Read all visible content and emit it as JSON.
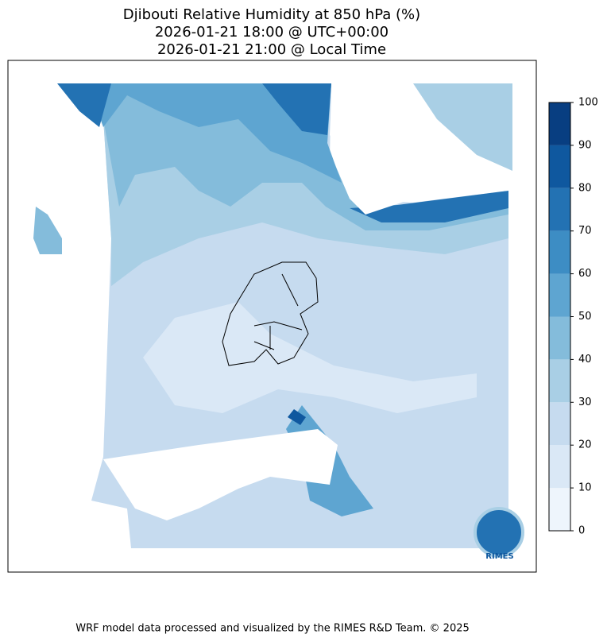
{
  "title": [
    "Djibouti Relative Humidity at 850 hPa (%)",
    "2026-01-21 18:00 @ UTC+00:00",
    "2026-01-21 21:00 @ Local Time"
  ],
  "colorbar": {
    "ticks": [
      0,
      10,
      20,
      30,
      40,
      50,
      60,
      70,
      80,
      90,
      100
    ],
    "colors": [
      "#eef5fc",
      "#dae8f6",
      "#c6dbef",
      "#a9cfe5",
      "#84bcdb",
      "#5ea5d1",
      "#3d8dc4",
      "#2372b3",
      "#0f589f",
      "#083e81"
    ]
  },
  "logo": "RIMES",
  "footer": "WRF model data processed and visualized by the RIMES R&D Team. © 2025"
}
